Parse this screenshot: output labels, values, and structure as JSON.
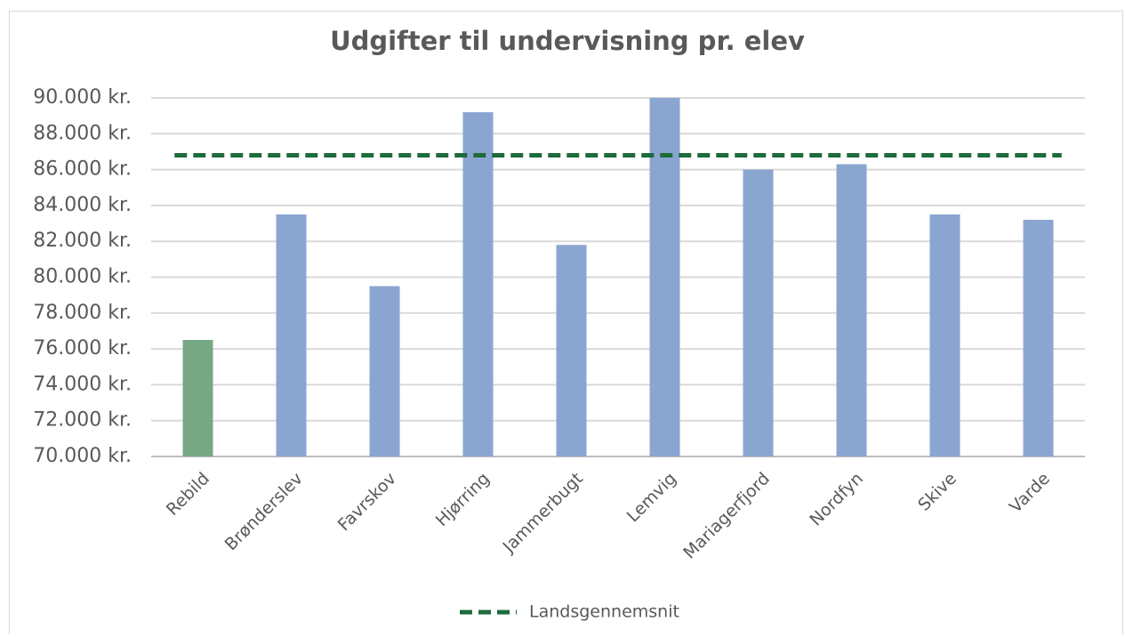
{
  "chart_data": {
    "type": "bar",
    "title": "Udgifter til undervisning pr. elev",
    "categories": [
      "Rebild",
      "Brønderslev",
      "Favrskov",
      "Hjørring",
      "Jammerbugt",
      "Lemvig",
      "Mariagerfjord",
      "Nordfyn",
      "Skive",
      "Varde"
    ],
    "values": [
      76500,
      83500,
      79500,
      89200,
      81800,
      90000,
      86000,
      86300,
      83500,
      83200
    ],
    "colors": [
      "#76a886",
      "#8ba5d1",
      "#8ba5d1",
      "#8ba5d1",
      "#8ba5d1",
      "#8ba5d1",
      "#8ba5d1",
      "#8ba5d1",
      "#8ba5d1",
      "#8ba5d1"
    ],
    "reference_line": {
      "name": "Landsgennemsnit",
      "value": 86800,
      "color": "#1e6b3c",
      "dashed": true
    },
    "ylim": [
      70000,
      90000
    ],
    "yticks": [
      {
        "value": 70000,
        "label": "70.000 kr."
      },
      {
        "value": 72000,
        "label": "72.000 kr."
      },
      {
        "value": 74000,
        "label": "74.000 kr."
      },
      {
        "value": 76000,
        "label": "76.000 kr."
      },
      {
        "value": 78000,
        "label": "78.000 kr."
      },
      {
        "value": 80000,
        "label": "80.000 kr."
      },
      {
        "value": 82000,
        "label": "82.000 kr."
      },
      {
        "value": 84000,
        "label": "84.000 kr."
      },
      {
        "value": 86000,
        "label": "86.000 kr."
      },
      {
        "value": 88000,
        "label": "88.000 kr."
      },
      {
        "value": 90000,
        "label": "90.000 kr."
      }
    ],
    "grid": true,
    "legend": "bottom"
  }
}
